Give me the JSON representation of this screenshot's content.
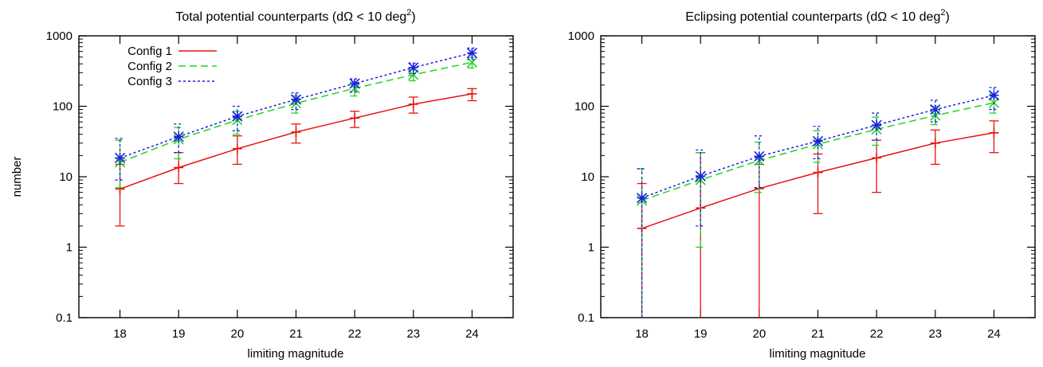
{
  "shared": {
    "ylabel": "number"
  },
  "chart_data": [
    {
      "type": "line",
      "title": "Total potential counterparts (dΩ < 10 deg",
      "title_sup": "2",
      "title_end": ")",
      "xlabel": "limiting magnitude",
      "ylabel": "number",
      "y_scale": "log",
      "xlim": [
        17.3,
        24.7
      ],
      "ylim": [
        0.1,
        1000
      ],
      "x_ticks": [
        "18",
        "19",
        "20",
        "21",
        "22",
        "23",
        "24"
      ],
      "y_ticks": [
        "0.1",
        "1",
        "10",
        "100",
        "1000"
      ],
      "legend": "top-left",
      "x": [
        18,
        19,
        20,
        21,
        22,
        23,
        24
      ],
      "series": [
        {
          "name": "Config 1",
          "color": "#e8130f",
          "style": "solid",
          "marker": "plus",
          "values": [
            6.7,
            13.5,
            25,
            43,
            68,
            107,
            150
          ],
          "err_low": [
            2,
            8,
            15,
            30,
            50,
            80,
            120
          ],
          "err_high": [
            15,
            22,
            38,
            56,
            85,
            135,
            178
          ]
        },
        {
          "name": "Config 2",
          "color": "#1fd51f",
          "style": "dashed",
          "marker": "cross",
          "values": [
            16,
            34,
            64,
            110,
            180,
            280,
            420
          ],
          "err_low": [
            7,
            18,
            40,
            80,
            140,
            230,
            350
          ],
          "err_high": [
            33,
            50,
            85,
            140,
            220,
            330,
            490
          ]
        },
        {
          "name": "Config 3",
          "color": "#1c1ce6",
          "style": "dotted",
          "marker": "star",
          "values": [
            18.5,
            37,
            72,
            125,
            210,
            355,
            570
          ],
          "err_low": [
            9,
            22,
            45,
            90,
            160,
            290,
            460
          ],
          "err_high": [
            35,
            56,
            100,
            155,
            245,
            410,
            670
          ]
        }
      ]
    },
    {
      "type": "line",
      "title": "Eclipsing potential counterparts (dΩ < 10 deg",
      "title_sup": "2",
      "title_end": ")",
      "xlabel": "limiting magnitude",
      "ylabel": "",
      "y_scale": "log",
      "xlim": [
        17.3,
        24.7
      ],
      "ylim": [
        0.1,
        1000
      ],
      "x_ticks": [
        "18",
        "19",
        "20",
        "21",
        "22",
        "23",
        "24"
      ],
      "y_ticks": [
        "0.1",
        "1",
        "10",
        "100",
        "1000"
      ],
      "legend": "none",
      "x": [
        18,
        19,
        20,
        21,
        22,
        23,
        24
      ],
      "series": [
        {
          "name": "Config 1",
          "color": "#e8130f",
          "style": "solid",
          "marker": "plus",
          "values": [
            1.85,
            3.6,
            6.8,
            11.5,
            18.5,
            30,
            42
          ],
          "err_low": [
            0.1,
            0.1,
            0.1,
            3,
            6,
            15,
            22
          ],
          "err_high": [
            8,
            22,
            15,
            21,
            33,
            46,
            62
          ]
        },
        {
          "name": "Config 2",
          "color": "#1fd51f",
          "style": "dashed",
          "marker": "cross",
          "values": [
            4.6,
            9,
            17,
            29,
            47,
            74,
            112
          ],
          "err_low": [
            0.1,
            1,
            6,
            16,
            28,
            55,
            80
          ],
          "err_high": [
            13,
            22,
            31,
            45,
            70,
            100,
            150
          ]
        },
        {
          "name": "Config 3",
          "color": "#1c1ce6",
          "style": "dotted",
          "marker": "star",
          "values": [
            5,
            10.2,
            19.5,
            32,
            54,
            90,
            143
          ],
          "err_low": [
            0.1,
            2,
            7,
            18,
            33,
            60,
            90
          ],
          "err_high": [
            13,
            24,
            38,
            52,
            80,
            122,
            185
          ]
        }
      ]
    }
  ]
}
